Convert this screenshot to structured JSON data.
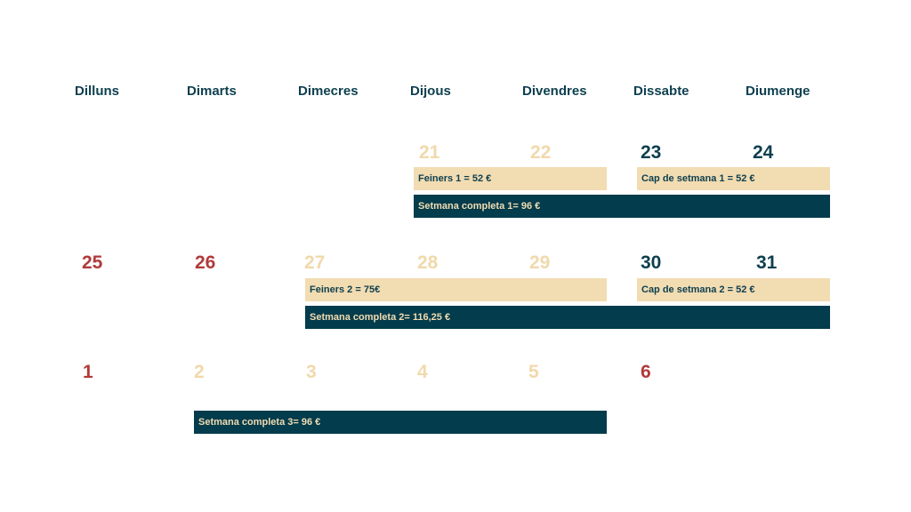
{
  "colors": {
    "heading": "#0d3f4f",
    "weekday_number": "#f0d9ab",
    "weekend_number": "#0d3f4f",
    "holiday_number": "#b23a3a",
    "light_bar": "#f2dcb2",
    "dark_bar": "#033c4c"
  },
  "weekdays": [
    "Dilluns",
    "Dimarts",
    "Dimecres",
    "Dijous",
    "Divendres",
    "Dissabte",
    "Diumenge"
  ],
  "week1": {
    "days": [
      "21",
      "22",
      "23",
      "24"
    ],
    "feiners": "Feiners 1 = 52 €",
    "cap_setmana": "Cap de setmana 1 = 52 €",
    "setmana_completa": "Setmana completa 1= 96 €"
  },
  "week2": {
    "days": [
      "25",
      "26",
      "27",
      "28",
      "29",
      "30",
      "31"
    ],
    "feiners": "Feiners 2 = 75€",
    "cap_setmana": "Cap de setmana 2 = 52 €",
    "setmana_completa": "Setmana completa 2= 116,25 €"
  },
  "week3": {
    "days": [
      "1",
      "2",
      "3",
      "4",
      "5",
      "6"
    ],
    "setmana_completa": "Setmana completa 3= 96 €"
  }
}
